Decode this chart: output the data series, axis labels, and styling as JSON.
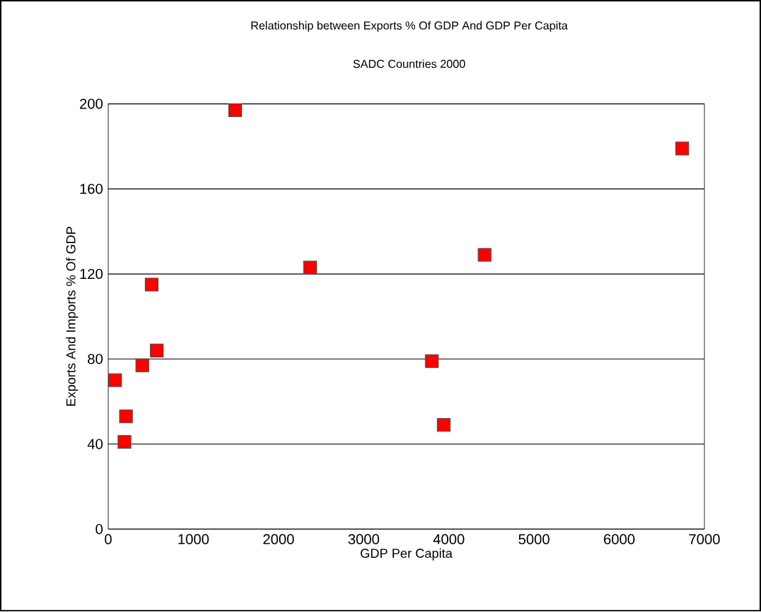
{
  "chart_data": {
    "type": "scatter",
    "title": "Relationship between Exports % Of GDP And GDP Per Capita",
    "subtitle": "SADC Countries 2000",
    "xlabel": "GDP Per Capita",
    "ylabel": "Exports And Imports % Of GDP",
    "x": [
      1490,
      2370,
      510,
      570,
      400,
      80,
      210,
      190,
      6740,
      4420,
      3800,
      3940
    ],
    "series": [
      {
        "color": "#ff0000",
        "values": [
          197,
          123,
          115,
          84,
          77,
          70,
          53,
          41,
          179,
          129,
          79,
          49
        ]
      }
    ],
    "xlim": [
      0,
      7000
    ],
    "xticks": [
      0,
      1000,
      2000,
      3000,
      4000,
      5000,
      6000,
      7000
    ],
    "ylim": [
      0,
      200
    ],
    "yticks": [
      0,
      40,
      80,
      120,
      160,
      200
    ],
    "grid": "y",
    "marker": "square"
  }
}
